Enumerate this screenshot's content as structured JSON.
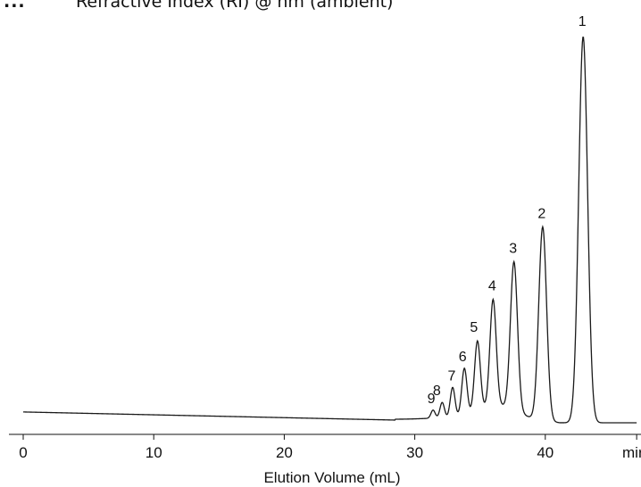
{
  "header": {
    "marker": "...",
    "title": "Refractive Index (RI) @ nm (ambient)"
  },
  "chart_data": {
    "type": "line",
    "title": "Refractive Index (RI) @ nm (ambient)",
    "xlabel": "Elution Volume (mL)",
    "x_unit_cut": "mir",
    "ylabel": "",
    "xlim": [
      0,
      47
    ],
    "ylim": [
      0,
      1.0
    ],
    "x_ticks": [
      0,
      10,
      20,
      30,
      40
    ],
    "grid": false,
    "legend": "none",
    "baseline": {
      "start_value": 0.028,
      "end_value": 0.0
    },
    "peaks": [
      {
        "label": "1",
        "x": 42.9,
        "height": 1.0,
        "width": 0.34
      },
      {
        "label": "2",
        "x": 39.8,
        "height": 0.503,
        "width": 0.3
      },
      {
        "label": "3",
        "x": 37.6,
        "height": 0.384,
        "width": 0.27
      },
      {
        "label": "4",
        "x": 36.0,
        "height": 0.276,
        "width": 0.24
      },
      {
        "label": "5",
        "x": 34.8,
        "height": 0.181,
        "width": 0.22
      },
      {
        "label": "6",
        "x": 33.8,
        "height": 0.121,
        "width": 0.2
      },
      {
        "label": "7",
        "x": 32.9,
        "height": 0.077,
        "width": 0.18
      },
      {
        "label": "8",
        "x": 32.1,
        "height": 0.04,
        "width": 0.17
      },
      {
        "label": "9",
        "x": 31.4,
        "height": 0.021,
        "width": 0.16
      }
    ],
    "line_color": "#1a1a1a"
  }
}
